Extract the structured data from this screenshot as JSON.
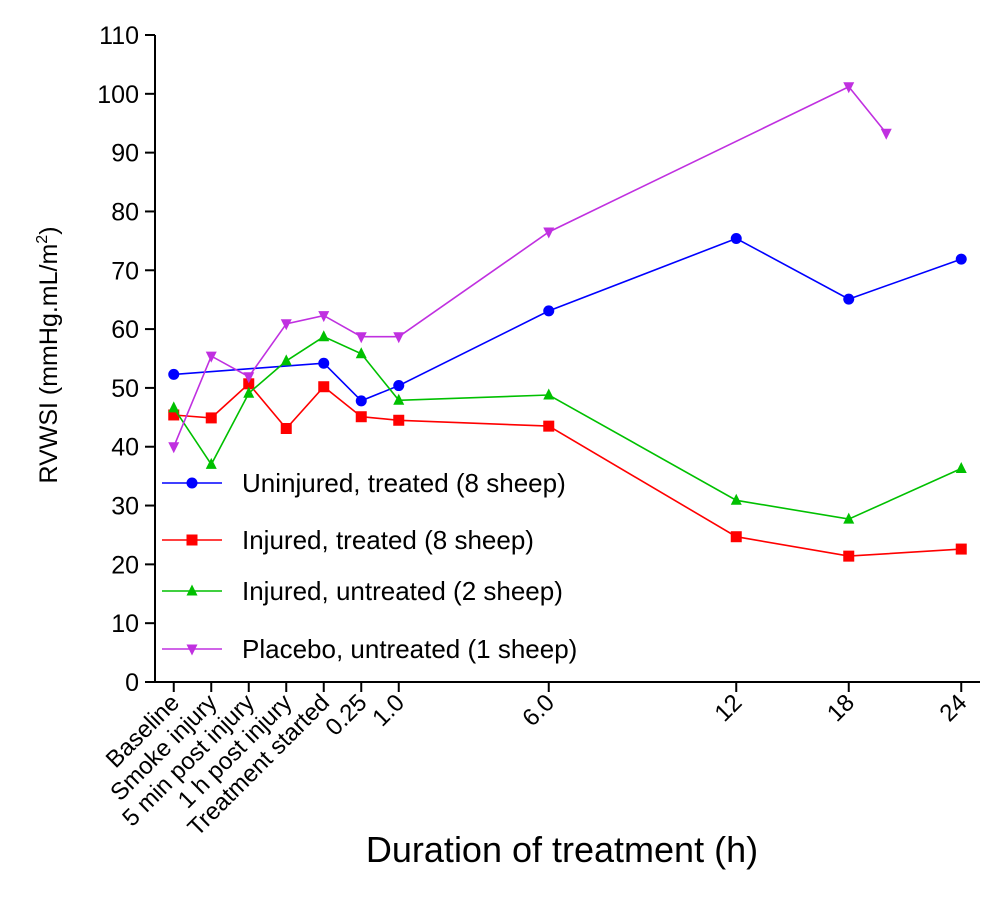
{
  "chart_data": {
    "type": "line",
    "title": "",
    "xlabel": "Duration of treatment (h)",
    "ylabel": "RVWSI (mmHg.mL/m²)",
    "ylabel_parts": {
      "main": "RVWSI (mmHg.mL/m",
      "sup": "2",
      "close": ")"
    },
    "ylim": [
      0,
      110
    ],
    "yticks": [
      0,
      10,
      20,
      30,
      40,
      50,
      60,
      70,
      80,
      90,
      100,
      110
    ],
    "grid": false,
    "legend_position": "left-middle",
    "x_ticks": [
      {
        "x": 0,
        "label": "Baseline"
      },
      {
        "x": 1,
        "label": "Smoke injury"
      },
      {
        "x": 2,
        "label": "5 min post injury"
      },
      {
        "x": 3,
        "label": "1 h post injury"
      },
      {
        "x": 4,
        "label": "Treatment started"
      },
      {
        "x": 5,
        "label": "0.25"
      },
      {
        "x": 6,
        "label": "1.0"
      },
      {
        "x": 10,
        "label": "6.0"
      },
      {
        "x": 15,
        "label": "12"
      },
      {
        "x": 18,
        "label": "18"
      },
      {
        "x": 21,
        "label": "24"
      }
    ],
    "xlim": [
      -0.5,
      21.5
    ],
    "series": [
      {
        "name": "Uninjured, treated (8 sheep)",
        "color": "#0000ff",
        "marker": "circle",
        "points": [
          [
            0,
            52.3
          ],
          [
            4,
            54.2
          ],
          [
            5,
            47.8
          ],
          [
            6,
            50.4
          ],
          [
            10,
            63.1
          ],
          [
            15,
            75.4
          ],
          [
            18,
            65.1
          ],
          [
            21,
            71.9
          ]
        ]
      },
      {
        "name": "Injured, treated (8 sheep)",
        "color": "#ff0000",
        "marker": "square",
        "points": [
          [
            0,
            45.4
          ],
          [
            1,
            44.9
          ],
          [
            2,
            50.7
          ],
          [
            3,
            43.1
          ],
          [
            4,
            50.2
          ],
          [
            5,
            45.1
          ],
          [
            6,
            44.5
          ],
          [
            10,
            43.5
          ],
          [
            15,
            24.7
          ],
          [
            18,
            21.4
          ],
          [
            21,
            22.6
          ]
        ]
      },
      {
        "name": "Injured, untreated (2 sheep)",
        "color": "#00c000",
        "marker": "triangle-up",
        "points": [
          [
            0,
            46.6
          ],
          [
            1,
            37.0
          ],
          [
            2,
            49.1
          ],
          [
            3,
            54.6
          ],
          [
            4,
            58.7
          ],
          [
            5,
            55.8
          ],
          [
            6,
            47.9
          ],
          [
            10,
            48.8
          ],
          [
            15,
            30.9
          ],
          [
            18,
            27.7
          ],
          [
            21,
            36.3
          ]
        ]
      },
      {
        "name": "Placebo, untreated (1 sheep)",
        "color": "#c030e0",
        "marker": "triangle-down",
        "points": [
          [
            0,
            40.0
          ],
          [
            1,
            55.4
          ],
          [
            2,
            51.9
          ],
          [
            3,
            60.9
          ],
          [
            4,
            62.3
          ],
          [
            5,
            58.7
          ],
          [
            6,
            58.7
          ],
          [
            10,
            76.5
          ],
          [
            18,
            101.2
          ],
          [
            19,
            93.3
          ]
        ]
      }
    ]
  }
}
